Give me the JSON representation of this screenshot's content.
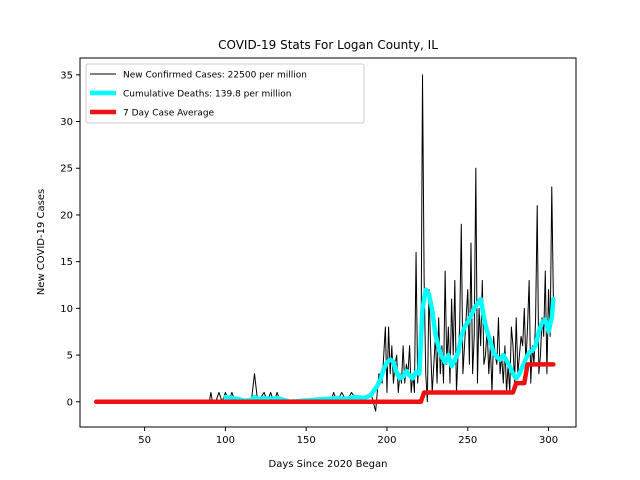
{
  "chart_data": {
    "type": "line",
    "title": "COVID-19 Stats For Logan County, IL",
    "xlabel": "Days Since 2020 Began",
    "ylabel": "New COVID-19 Cases",
    "xlim": [
      10,
      317
    ],
    "ylim": [
      -2.7,
      36.8
    ],
    "xticks": [
      50,
      100,
      150,
      200,
      250,
      300
    ],
    "yticks": [
      0,
      5,
      10,
      15,
      20,
      25,
      30,
      35
    ],
    "grid": false,
    "legend_position": "top-left",
    "series": [
      {
        "name": "New Confirmed Cases: 22500 per million",
        "color": "#000000",
        "x": [
          20,
          90,
          91,
          92,
          94,
          96,
          98,
          100,
          102,
          104,
          106,
          110,
          116,
          118,
          120,
          124,
          126,
          128,
          130,
          132,
          134,
          136,
          140,
          165,
          167,
          169,
          172,
          175,
          178,
          182,
          185,
          190,
          193,
          195,
          197,
          199,
          200,
          201,
          202,
          203,
          204,
          205,
          206,
          207,
          208,
          209,
          210,
          211,
          212,
          213,
          214,
          215,
          216,
          217,
          218,
          219,
          220,
          221,
          222,
          223,
          224,
          225,
          226,
          227,
          228,
          229,
          230,
          231,
          232,
          233,
          234,
          235,
          236,
          237,
          238,
          239,
          240,
          241,
          242,
          243,
          244,
          245,
          246,
          247,
          248,
          249,
          250,
          251,
          252,
          253,
          254,
          255,
          256,
          257,
          258,
          259,
          260,
          261,
          262,
          263,
          264,
          265,
          266,
          267,
          268,
          269,
          270,
          271,
          272,
          273,
          274,
          275,
          276,
          277,
          278,
          279,
          280,
          281,
          282,
          283,
          284,
          285,
          286,
          287,
          288,
          289,
          290,
          291,
          292,
          293,
          294,
          295,
          296,
          297,
          298,
          299,
          300,
          301,
          302,
          303
        ],
        "y": [
          0,
          0,
          1,
          0,
          0,
          1,
          0,
          1,
          0,
          1,
          0,
          0,
          0,
          3,
          0,
          1,
          0,
          1,
          0,
          1,
          0,
          0,
          0,
          0,
          1,
          0,
          1,
          0,
          1,
          0,
          0,
          1,
          -1,
          3,
          2,
          8,
          1,
          8,
          3,
          6,
          2,
          4,
          5,
          1,
          3,
          2,
          6,
          2,
          4,
          3,
          6,
          1,
          3,
          1,
          16,
          2,
          5,
          3,
          35,
          13,
          3,
          0,
          12,
          6,
          1,
          4,
          7,
          2,
          9,
          3,
          6,
          2,
          14,
          4,
          8,
          2,
          11,
          5,
          13,
          1,
          5,
          8,
          19,
          3,
          6,
          9,
          12,
          4,
          17,
          3,
          7,
          25,
          2,
          10,
          6,
          13,
          4,
          5,
          8,
          3,
          6,
          1,
          7,
          5,
          4,
          9,
          3,
          5,
          2,
          6,
          1,
          4,
          1,
          8,
          6,
          2,
          9,
          3,
          5,
          7,
          6,
          10,
          4,
          8,
          13,
          2,
          6,
          4,
          9,
          21,
          3,
          5,
          9,
          7,
          14,
          3,
          12,
          7,
          23,
          11
        ]
      },
      {
        "name": "Cumulative Deaths: 139.8 per million",
        "color": "#00ffff",
        "x": [
          100,
          104,
          108,
          112,
          116,
          118,
          120,
          124,
          128,
          132,
          136,
          138,
          140,
          170,
          174,
          180,
          186,
          190,
          194,
          196,
          198,
          200,
          202,
          204,
          206,
          208,
          210,
          212,
          214,
          216,
          218,
          220,
          222,
          224,
          226,
          228,
          230,
          232,
          234,
          236,
          238,
          240,
          242,
          244,
          246,
          248,
          250,
          252,
          254,
          256,
          258,
          260,
          262,
          264,
          266,
          268,
          270,
          272,
          274,
          276,
          278,
          280,
          282,
          284,
          286,
          288,
          290,
          292,
          294,
          296,
          298,
          300,
          302,
          303
        ],
        "y": [
          0.5,
          0.4,
          0.3,
          0.1,
          0.2,
          0.5,
          0.3,
          0.4,
          0.3,
          0.4,
          0.2,
          0.1,
          0,
          0.4,
          0.3,
          0.5,
          0.4,
          0.7,
          1.7,
          2.4,
          3.5,
          4.2,
          4.5,
          4.3,
          3.1,
          2.5,
          2.7,
          3.3,
          2.8,
          2.5,
          3.2,
          3.0,
          10,
          12,
          11.5,
          9.8,
          7.2,
          5.8,
          4.8,
          4.2,
          5.0,
          3.8,
          4.5,
          5.2,
          7.0,
          8.0,
          8.5,
          9.2,
          10.0,
          10.5,
          11.0,
          9.0,
          7.5,
          6.5,
          5.2,
          4.8,
          4.5,
          5.0,
          4.4,
          3.8,
          3.0,
          2.5,
          3.0,
          3.8,
          4.6,
          5.3,
          5.5,
          6.0,
          7.5,
          8.5,
          8.8,
          7.5,
          9.0,
          11
        ]
      },
      {
        "name": "7 Day Case Average",
        "color": "#ee1111",
        "x": [
          20,
          221,
          222,
          223,
          278,
          279,
          280,
          285,
          286,
          287,
          303
        ],
        "y": [
          0,
          0,
          0.5,
          1,
          1,
          1.5,
          2,
          2,
          3,
          4,
          4
        ]
      }
    ]
  }
}
